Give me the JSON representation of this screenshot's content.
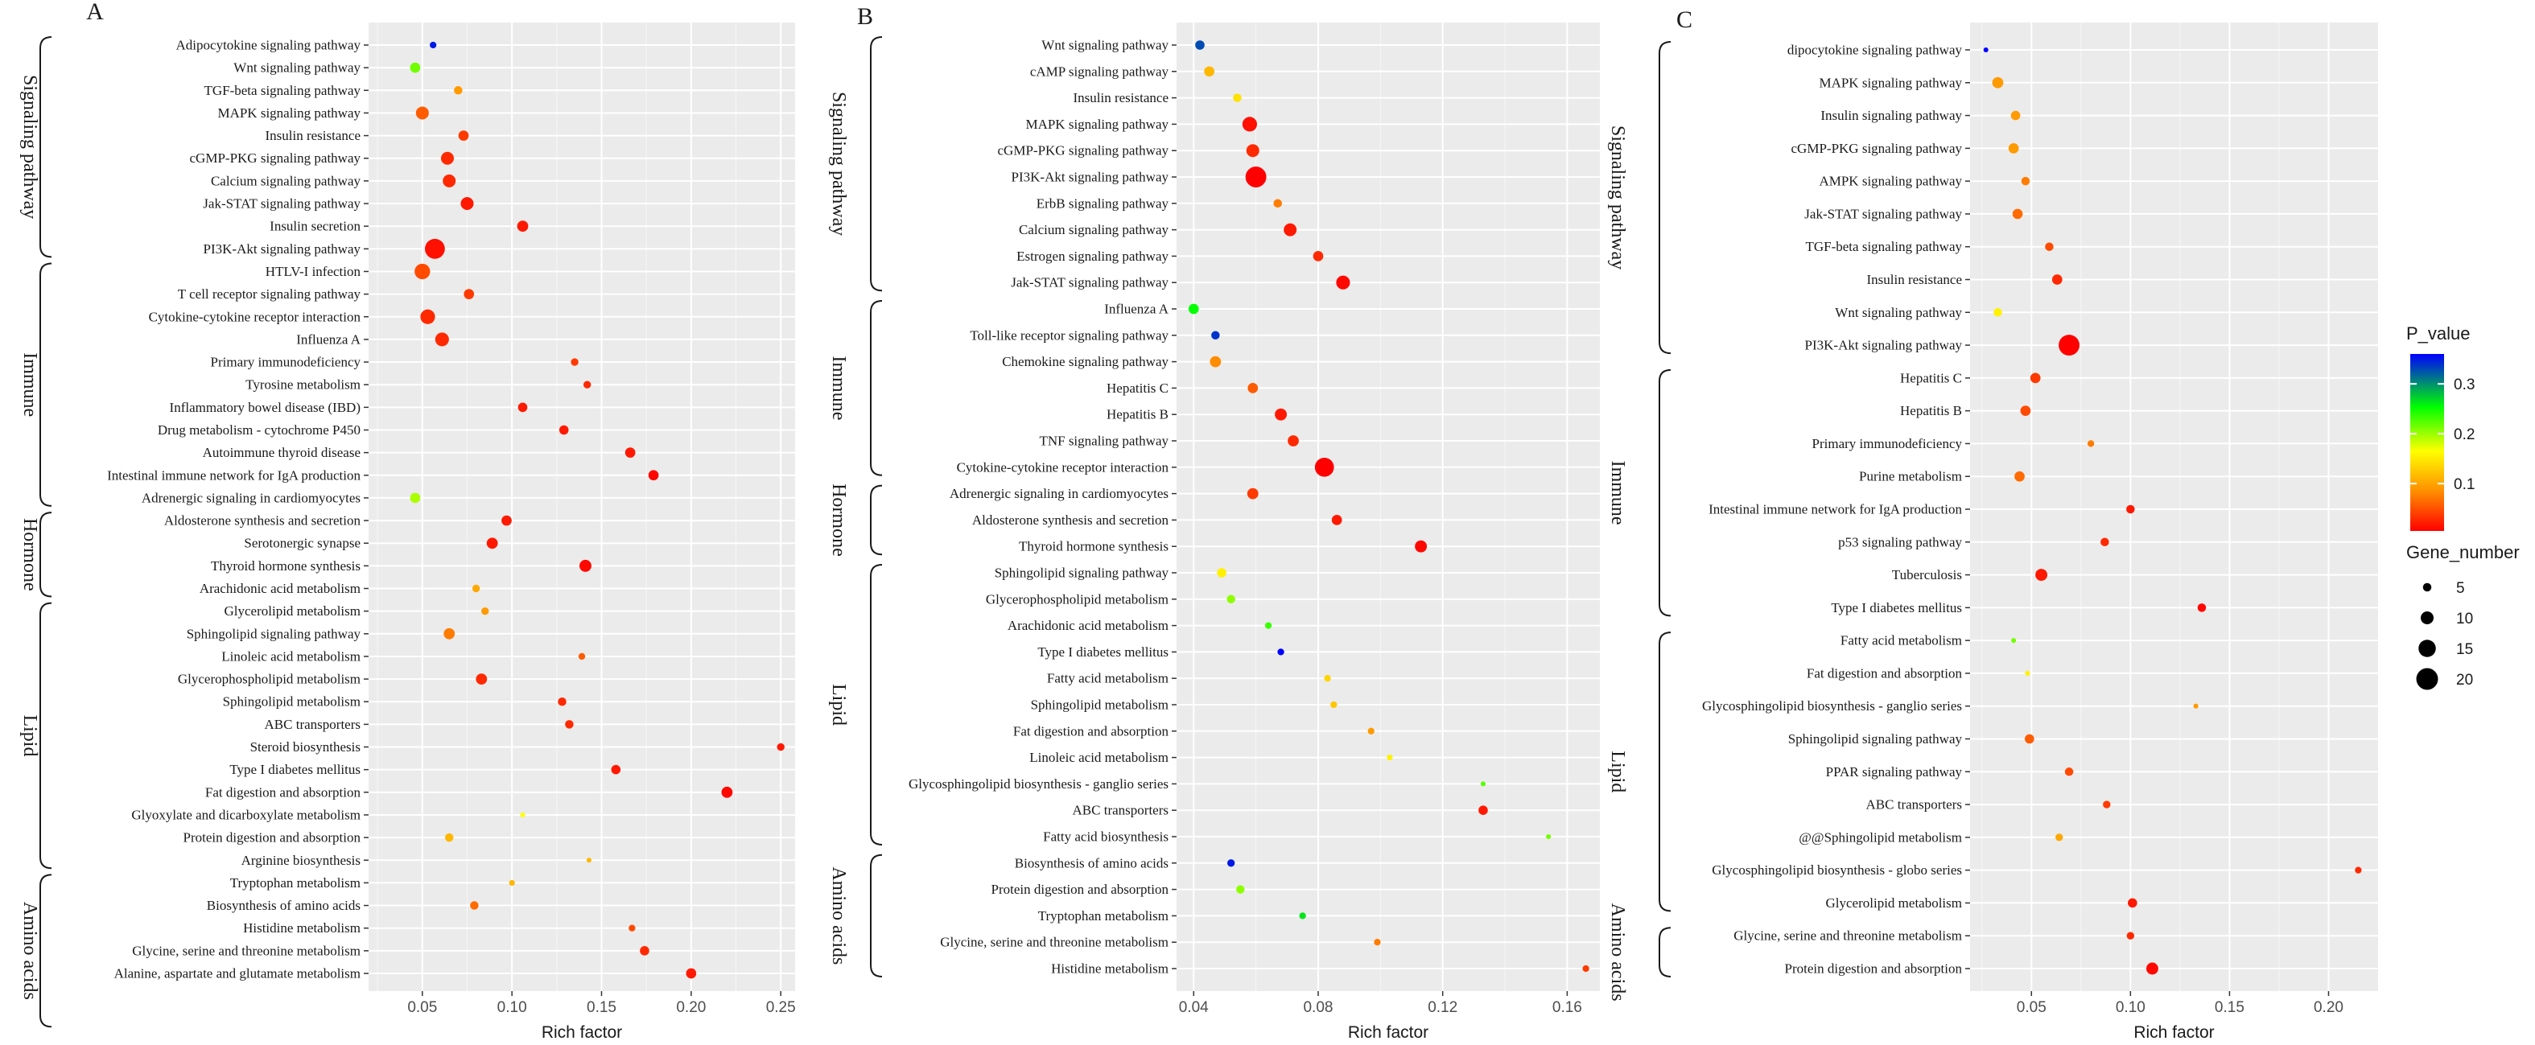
{
  "legend": {
    "color_title": "P_value",
    "color_ticks": [
      "0.3",
      "0.2",
      "0.1"
    ],
    "color_tick_values": [
      0.3,
      0.2,
      0.1
    ],
    "color_range": [
      0.005,
      0.36
    ],
    "colors": [
      "#ff0000",
      "#ff8c00",
      "#ffff00",
      "#00ff00",
      "#0000ff"
    ],
    "size_title": "Gene_number",
    "size_ticks": [
      "5",
      "10",
      "15",
      "20"
    ],
    "size_values": [
      5,
      10,
      15,
      20
    ]
  },
  "chart_data": [
    {
      "type": "scatter",
      "panel": "A",
      "xlabel": "Rich factor",
      "xlim": [
        0.02,
        0.258
      ],
      "xticks": [
        0.05,
        0.1,
        0.15,
        0.2,
        0.25
      ],
      "xtick_labels": [
        "0.05",
        "0.10",
        "0.15",
        "0.20",
        "0.25"
      ],
      "groups": [
        {
          "name": "Signaling pathway",
          "from": 0,
          "to": 9
        },
        {
          "name": "Immune",
          "from": 10,
          "to": 20
        },
        {
          "name": "Hormone",
          "from": 21,
          "to": 24
        },
        {
          "name": "Lipid",
          "from": 25,
          "to": 36
        },
        {
          "name": "Amino acids",
          "from": 37,
          "to": 43
        }
      ],
      "points": [
        {
          "label": "Adipocytokine signaling pathway",
          "x": 0.056,
          "p": 0.35,
          "n": 3
        },
        {
          "label": "Wnt signaling pathway",
          "x": 0.046,
          "p": 0.22,
          "n": 7
        },
        {
          "label": "TGF-beta signaling pathway",
          "x": 0.07,
          "p": 0.1,
          "n": 5
        },
        {
          "label": "MAPK signaling pathway",
          "x": 0.05,
          "p": 0.06,
          "n": 10
        },
        {
          "label": "Insulin resistance",
          "x": 0.073,
          "p": 0.04,
          "n": 7
        },
        {
          "label": "cGMP-PKG signaling pathway",
          "x": 0.064,
          "p": 0.03,
          "n": 10
        },
        {
          "label": "Calcium signaling pathway",
          "x": 0.065,
          "p": 0.03,
          "n": 10
        },
        {
          "label": "Jak-STAT signaling pathway",
          "x": 0.075,
          "p": 0.02,
          "n": 10
        },
        {
          "label": "Insulin secretion",
          "x": 0.106,
          "p": 0.02,
          "n": 8
        },
        {
          "label": "PI3K-Akt signaling pathway",
          "x": 0.057,
          "p": 0.015,
          "n": 18
        },
        {
          "label": "HTLV-I infection",
          "x": 0.05,
          "p": 0.05,
          "n": 13
        },
        {
          "label": "T cell receptor signaling pathway",
          "x": 0.076,
          "p": 0.04,
          "n": 7
        },
        {
          "label": "Cytokine-cytokine receptor interaction",
          "x": 0.053,
          "p": 0.03,
          "n": 12
        },
        {
          "label": "Influenza A",
          "x": 0.061,
          "p": 0.03,
          "n": 11
        },
        {
          "label": "Primary immunodeficiency",
          "x": 0.135,
          "p": 0.04,
          "n": 4
        },
        {
          "label": "Tyrosine metabolism",
          "x": 0.142,
          "p": 0.03,
          "n": 4
        },
        {
          "label": "Inflammatory bowel disease (IBD)",
          "x": 0.106,
          "p": 0.02,
          "n": 6
        },
        {
          "label": "Drug metabolism - cytochrome P450",
          "x": 0.129,
          "p": 0.02,
          "n": 6
        },
        {
          "label": "Autoimmune thyroid disease",
          "x": 0.166,
          "p": 0.02,
          "n": 7
        },
        {
          "label": "Intestinal immune network for IgA production",
          "x": 0.179,
          "p": 0.01,
          "n": 7
        },
        {
          "label": "Adrenergic signaling in cardiomyocytes",
          "x": 0.046,
          "p": 0.2,
          "n": 7
        },
        {
          "label": "Aldosterone synthesis and secretion",
          "x": 0.097,
          "p": 0.02,
          "n": 7
        },
        {
          "label": "Serotonergic synapse",
          "x": 0.089,
          "p": 0.02,
          "n": 8
        },
        {
          "label": "Thyroid hormone synthesis",
          "x": 0.141,
          "p": 0.01,
          "n": 9
        },
        {
          "label": "Arachidonic acid metabolism",
          "x": 0.08,
          "p": 0.11,
          "n": 4
        },
        {
          "label": "Glycerolipid metabolism",
          "x": 0.085,
          "p": 0.1,
          "n": 4
        },
        {
          "label": "Sphingolipid signaling pathway",
          "x": 0.065,
          "p": 0.08,
          "n": 8
        },
        {
          "label": "Linoleic acid metabolism",
          "x": 0.139,
          "p": 0.06,
          "n": 3
        },
        {
          "label": "Glycerophospholipid metabolism",
          "x": 0.083,
          "p": 0.03,
          "n": 8
        },
        {
          "label": "Sphingolipid metabolism",
          "x": 0.128,
          "p": 0.03,
          "n": 5
        },
        {
          "label": "ABC transporters",
          "x": 0.132,
          "p": 0.03,
          "n": 5
        },
        {
          "label": "Steroid biosynthesis",
          "x": 0.25,
          "p": 0.02,
          "n": 4
        },
        {
          "label": "Type I diabetes mellitus",
          "x": 0.158,
          "p": 0.02,
          "n": 6
        },
        {
          "label": "Fat digestion and absorption",
          "x": 0.22,
          "p": 0.01,
          "n": 8
        },
        {
          "label": "Glyoxylate and dicarboxylate metabolism",
          "x": 0.106,
          "p": 0.17,
          "n": 1
        },
        {
          "label": "Protein digestion and absorption",
          "x": 0.065,
          "p": 0.12,
          "n": 5
        },
        {
          "label": "Arginine biosynthesis",
          "x": 0.143,
          "p": 0.12,
          "n": 1
        },
        {
          "label": "Tryptophan metabolism",
          "x": 0.1,
          "p": 0.12,
          "n": 2
        },
        {
          "label": "Biosynthesis of amino acids",
          "x": 0.079,
          "p": 0.07,
          "n": 5
        },
        {
          "label": "Histidine metabolism",
          "x": 0.167,
          "p": 0.05,
          "n": 3
        },
        {
          "label": "Glycine, serine and threonine metabolism",
          "x": 0.174,
          "p": 0.03,
          "n": 6
        },
        {
          "label": "Alanine, aspartate and glutamate metabolism",
          "x": 0.2,
          "p": 0.02,
          "n": 7
        }
      ]
    },
    {
      "type": "scatter",
      "panel": "B",
      "xlabel": "Rich factor",
      "xlim": [
        0.0345,
        0.1705
      ],
      "xticks": [
        0.04,
        0.08,
        0.12,
        0.16
      ],
      "xtick_labels": [
        "0.04",
        "0.08",
        "0.12",
        "0.16"
      ],
      "groups": [
        {
          "name": "Signaling pathway",
          "from": 0,
          "to": 9
        },
        {
          "name": "Immune",
          "from": 10,
          "to": 16
        },
        {
          "name": "Hormone",
          "from": 17,
          "to": 19
        },
        {
          "name": "Lipid",
          "from": 20,
          "to": 30
        },
        {
          "name": "Amino acids",
          "from": 31,
          "to": 35
        }
      ],
      "points": [
        {
          "label": "Wnt signaling pathway",
          "x": 0.042,
          "p": 0.33,
          "n": 6
        },
        {
          "label": "cAMP signaling pathway",
          "x": 0.045,
          "p": 0.12,
          "n": 7
        },
        {
          "label": "Insulin resistance",
          "x": 0.054,
          "p": 0.15,
          "n": 5
        },
        {
          "label": "MAPK signaling pathway",
          "x": 0.058,
          "p": 0.015,
          "n": 12
        },
        {
          "label": "cGMP-PKG signaling pathway",
          "x": 0.059,
          "p": 0.03,
          "n": 10
        },
        {
          "label": "PI3K-Akt signaling pathway",
          "x": 0.06,
          "p": 0.005,
          "n": 19
        },
        {
          "label": "ErbB signaling pathway",
          "x": 0.067,
          "p": 0.08,
          "n": 5
        },
        {
          "label": "Calcium signaling pathway",
          "x": 0.071,
          "p": 0.02,
          "n": 10
        },
        {
          "label": "Estrogen signaling pathway",
          "x": 0.08,
          "p": 0.03,
          "n": 7
        },
        {
          "label": "Jak-STAT signaling pathway",
          "x": 0.088,
          "p": 0.01,
          "n": 11
        },
        {
          "label": "Influenza A",
          "x": 0.04,
          "p": 0.26,
          "n": 7
        },
        {
          "label": "Toll-like receptor signaling pathway",
          "x": 0.047,
          "p": 0.34,
          "n": 5
        },
        {
          "label": "Chemokine signaling pathway",
          "x": 0.047,
          "p": 0.09,
          "n": 8
        },
        {
          "label": "Hepatitis C",
          "x": 0.059,
          "p": 0.06,
          "n": 7
        },
        {
          "label": "Hepatitis B",
          "x": 0.068,
          "p": 0.02,
          "n": 9
        },
        {
          "label": "TNF signaling pathway",
          "x": 0.072,
          "p": 0.03,
          "n": 8
        },
        {
          "label": "Cytokine-cytokine receptor interaction",
          "x": 0.082,
          "p": 0.002,
          "n": 17
        },
        {
          "label": "Adrenergic signaling in cardiomyocytes",
          "x": 0.059,
          "p": 0.04,
          "n": 8
        },
        {
          "label": "Aldosterone synthesis and secretion",
          "x": 0.086,
          "p": 0.02,
          "n": 7
        },
        {
          "label": "Thyroid hormone synthesis",
          "x": 0.113,
          "p": 0.01,
          "n": 9
        },
        {
          "label": "Sphingolipid signaling pathway",
          "x": 0.049,
          "p": 0.16,
          "n": 6
        },
        {
          "label": "Glycerophospholipid metabolism",
          "x": 0.052,
          "p": 0.21,
          "n": 5
        },
        {
          "label": "Arachidonic acid metabolism",
          "x": 0.064,
          "p": 0.24,
          "n": 3
        },
        {
          "label": "Type I diabetes mellitus",
          "x": 0.068,
          "p": 0.36,
          "n": 3
        },
        {
          "label": "Fatty acid metabolism",
          "x": 0.083,
          "p": 0.14,
          "n": 3
        },
        {
          "label": "Sphingolipid metabolism",
          "x": 0.085,
          "p": 0.13,
          "n": 3
        },
        {
          "label": "Fat digestion and absorption",
          "x": 0.097,
          "p": 0.1,
          "n": 3
        },
        {
          "label": "Linoleic acid metabolism",
          "x": 0.103,
          "p": 0.16,
          "n": 2
        },
        {
          "label": "Glycosphingolipid biosynthesis - ganglio series",
          "x": 0.133,
          "p": 0.23,
          "n": 1
        },
        {
          "label": "ABC transporters",
          "x": 0.133,
          "p": 0.02,
          "n": 6
        },
        {
          "label": "Fatty acid biosynthesis",
          "x": 0.154,
          "p": 0.22,
          "n": 1
        },
        {
          "label": "Biosynthesis of amino acids",
          "x": 0.052,
          "p": 0.35,
          "n": 4
        },
        {
          "label": "Protein digestion and absorption",
          "x": 0.055,
          "p": 0.21,
          "n": 5
        },
        {
          "label": "Tryptophan metabolism",
          "x": 0.075,
          "p": 0.27,
          "n": 3
        },
        {
          "label": "Glycine, serine and threonine metabolism",
          "x": 0.099,
          "p": 0.08,
          "n": 3
        },
        {
          "label": "Histidine metabolism",
          "x": 0.166,
          "p": 0.04,
          "n": 3
        }
      ]
    },
    {
      "type": "scatter",
      "panel": "C",
      "xlabel": "Rich factor",
      "xlim": [
        0.019,
        0.225
      ],
      "xticks": [
        0.05,
        0.1,
        0.15,
        0.2
      ],
      "xtick_labels": [
        "0.05",
        "0.10",
        "0.15",
        "0.20"
      ],
      "groups": [
        {
          "name": "Signaling pathway",
          "from": 0,
          "to": 9
        },
        {
          "name": "Immune",
          "from": 10,
          "to": 17
        },
        {
          "name": "Lipid",
          "from": 18,
          "to": 26
        },
        {
          "name": "Amino acids",
          "from": 27,
          "to": 28
        }
      ],
      "points": [
        {
          "label": "dipocytokine signaling pathway",
          "x": 0.027,
          "p": 0.36,
          "n": 1
        },
        {
          "label": "MAPK signaling pathway",
          "x": 0.033,
          "p": 0.1,
          "n": 8
        },
        {
          "label": "Insulin signaling pathway",
          "x": 0.042,
          "p": 0.1,
          "n": 6
        },
        {
          "label": "cGMP-PKG signaling pathway",
          "x": 0.041,
          "p": 0.1,
          "n": 7
        },
        {
          "label": "AMPK signaling pathway",
          "x": 0.047,
          "p": 0.08,
          "n": 5
        },
        {
          "label": "Jak-STAT signaling pathway",
          "x": 0.043,
          "p": 0.07,
          "n": 7
        },
        {
          "label": "TGF-beta signaling pathway",
          "x": 0.059,
          "p": 0.05,
          "n": 5
        },
        {
          "label": "Insulin resistance",
          "x": 0.063,
          "p": 0.03,
          "n": 7
        },
        {
          "label": "Wnt signaling pathway",
          "x": 0.033,
          "p": 0.16,
          "n": 5
        },
        {
          "label": "PI3K-Akt signaling pathway",
          "x": 0.069,
          "p": 0.002,
          "n": 19
        },
        {
          "label": "Hepatitis C",
          "x": 0.052,
          "p": 0.04,
          "n": 7
        },
        {
          "label": "Hepatitis B",
          "x": 0.047,
          "p": 0.05,
          "n": 7
        },
        {
          "label": "Primary immunodeficiency",
          "x": 0.08,
          "p": 0.08,
          "n": 3
        },
        {
          "label": "Purine metabolism",
          "x": 0.044,
          "p": 0.07,
          "n": 7
        },
        {
          "label": "Intestinal immune network for IgA production",
          "x": 0.1,
          "p": 0.02,
          "n": 5
        },
        {
          "label": "p53 signaling pathway",
          "x": 0.087,
          "p": 0.03,
          "n": 5
        },
        {
          "label": "Tuberculosis",
          "x": 0.055,
          "p": 0.02,
          "n": 9
        },
        {
          "label": "Type I diabetes mellitus",
          "x": 0.136,
          "p": 0.01,
          "n": 5
        },
        {
          "label": "Fatty acid metabolism",
          "x": 0.041,
          "p": 0.22,
          "n": 1
        },
        {
          "label": "Fat digestion and absorption",
          "x": 0.048,
          "p": 0.16,
          "n": 1
        },
        {
          "label": "Glycosphingolipid biosynthesis - ganglio series",
          "x": 0.133,
          "p": 0.1,
          "n": 1
        },
        {
          "label": "Sphingolipid signaling pathway",
          "x": 0.049,
          "p": 0.06,
          "n": 6
        },
        {
          "label": "PPAR signaling pathway",
          "x": 0.069,
          "p": 0.05,
          "n": 5
        },
        {
          "label": "ABC transporters",
          "x": 0.088,
          "p": 0.04,
          "n": 4
        },
        {
          "label": "@@Sphingolipid metabolism",
          "x": 0.064,
          "p": 0.11,
          "n": 4
        },
        {
          "label": "Glycosphingolipid biosynthesis - globo series",
          "x": 0.215,
          "p": 0.03,
          "n": 3
        },
        {
          "label": "Glycerolipid metabolism",
          "x": 0.101,
          "p": 0.02,
          "n": 6
        },
        {
          "label": "Glycine, serine and threonine metabolism",
          "x": 0.1,
          "p": 0.03,
          "n": 4
        },
        {
          "label": "Protein digestion and absorption",
          "x": 0.111,
          "p": 0.01,
          "n": 9
        }
      ]
    }
  ]
}
